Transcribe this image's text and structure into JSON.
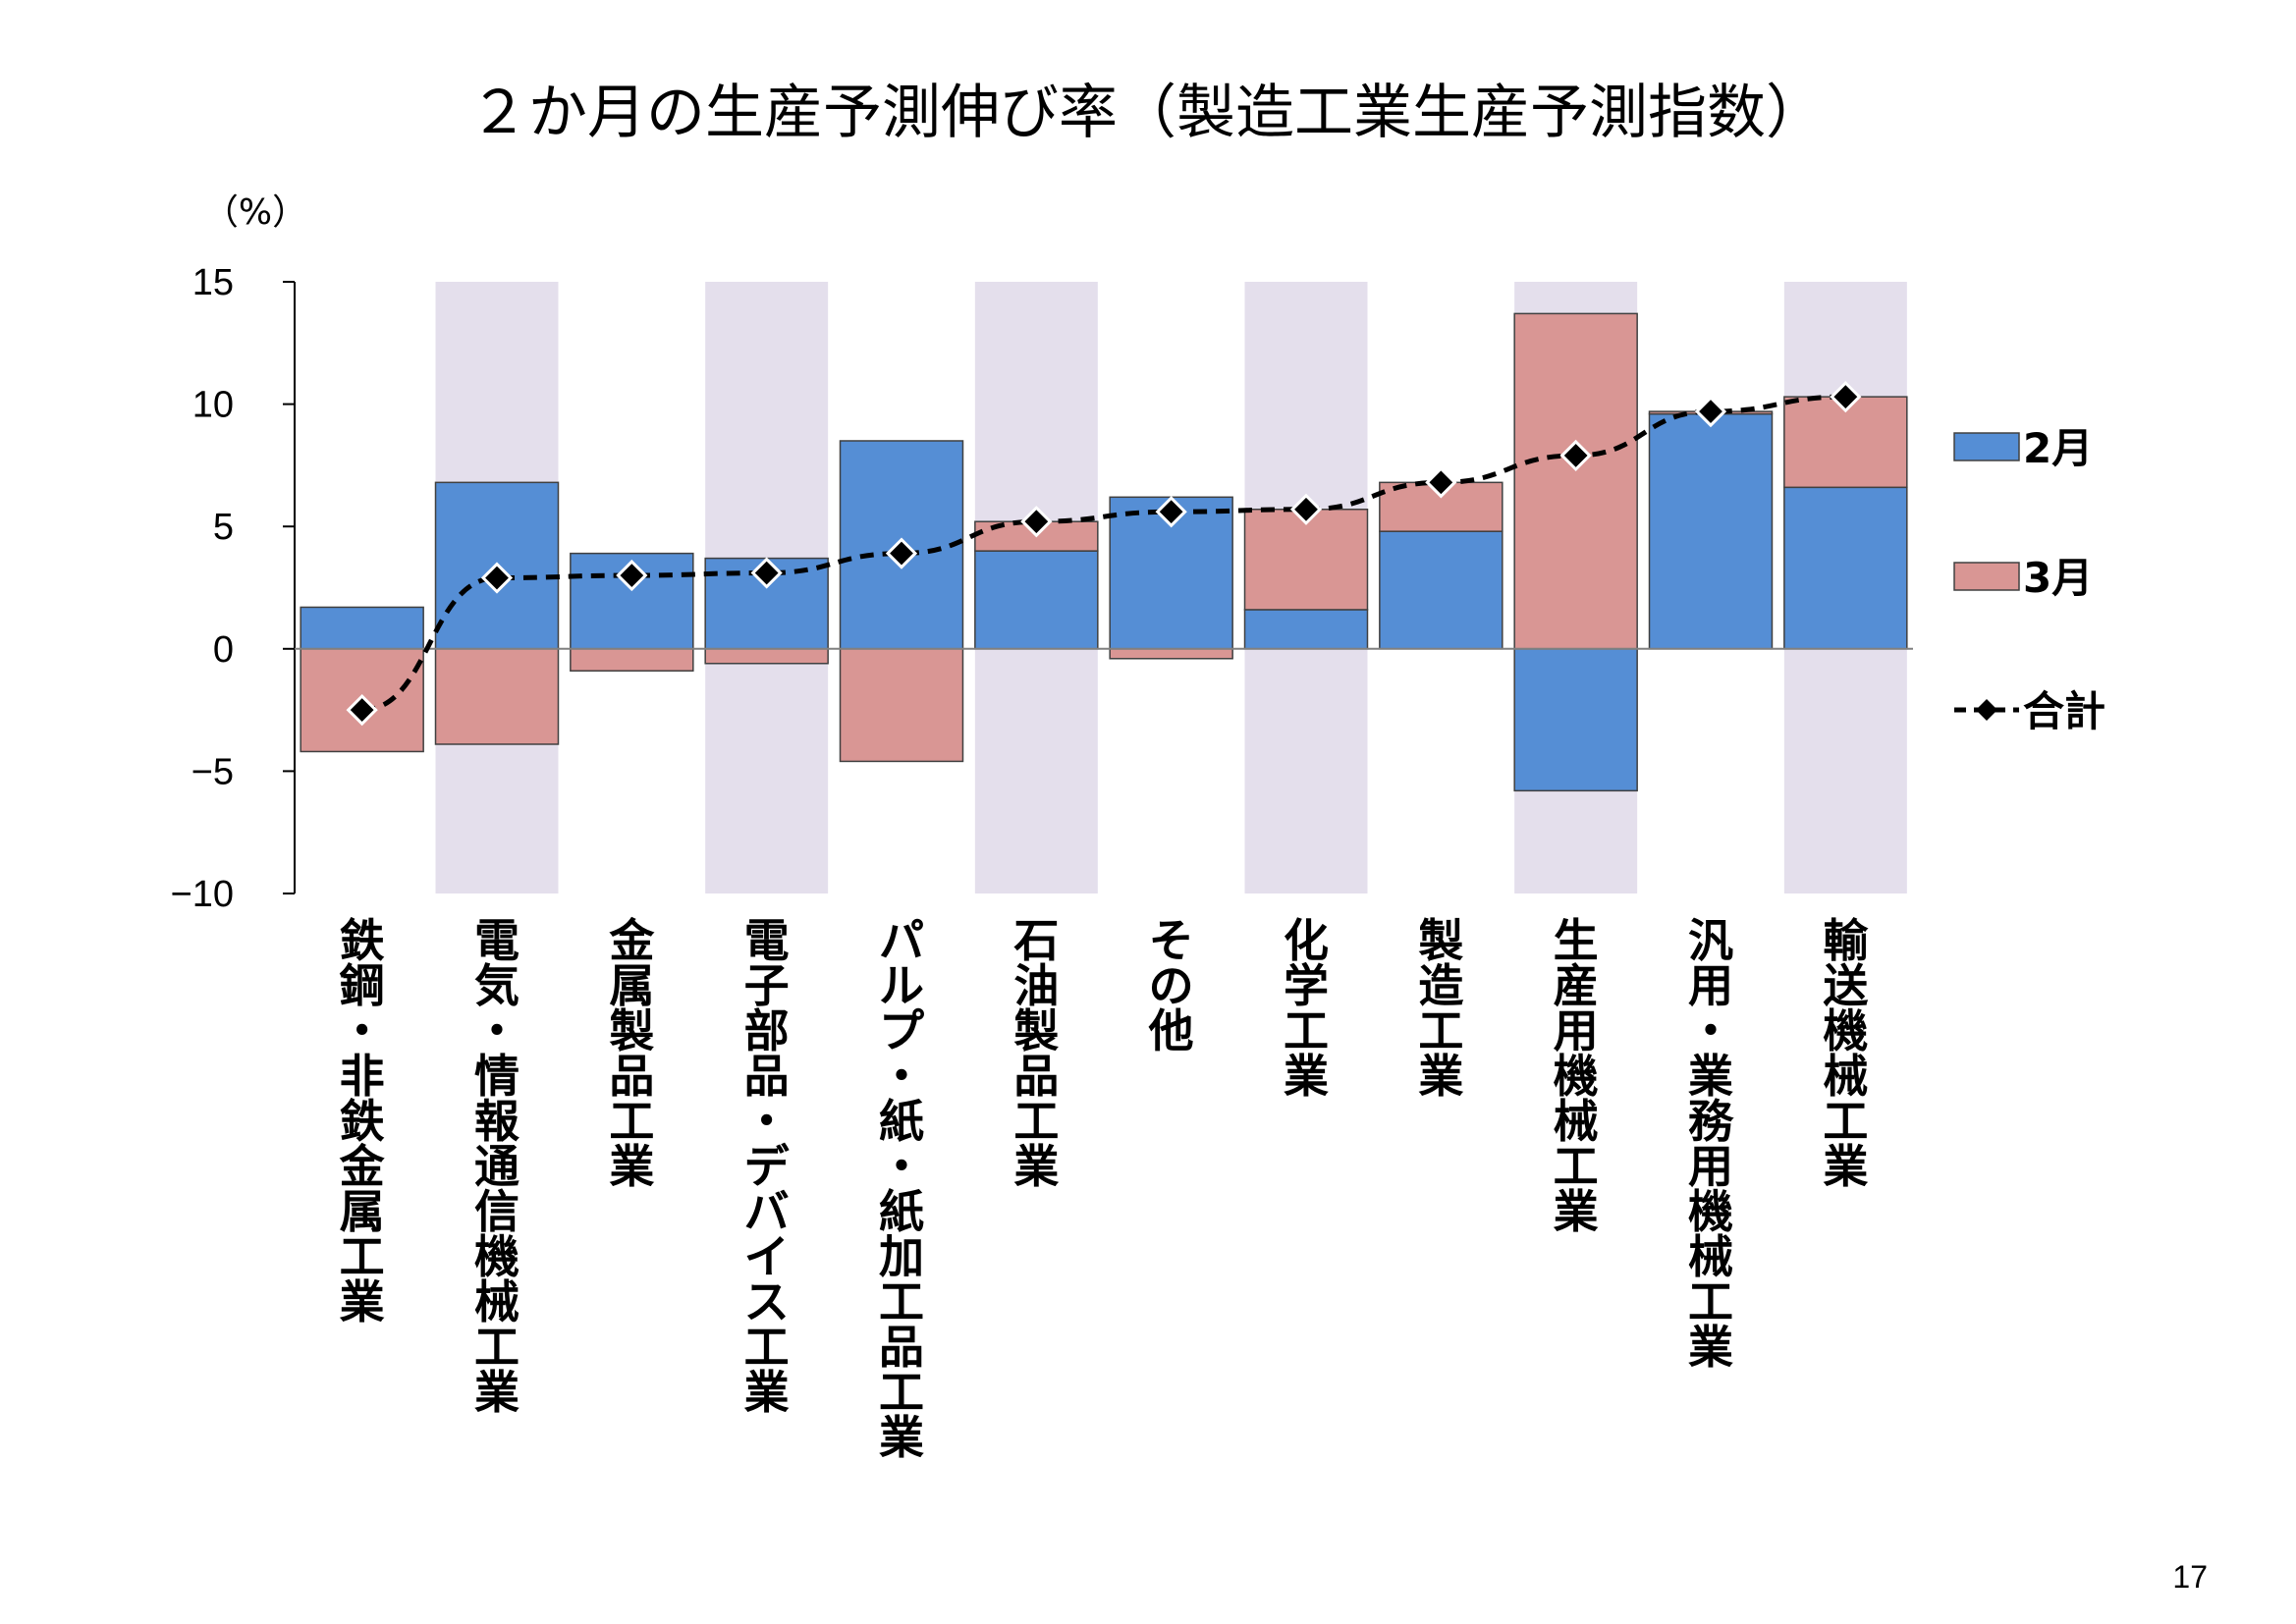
{
  "page_number": "17",
  "chart_data": {
    "type": "bar",
    "stacked": true,
    "title": "２か月の生産予測伸び率（製造工業生産予測指数）",
    "ylabel": "（%）",
    "ylim": [
      -10,
      15
    ],
    "yticks": [
      "15",
      "10",
      "5",
      "0",
      "−5",
      "−10"
    ],
    "ytick_values": [
      15,
      10,
      5,
      0,
      -5,
      -10
    ],
    "categories": [
      "鉄鋼・非鉄金属工業",
      "電気・情報通信機械工業",
      "金属製品工業",
      "電子部品・デバイス工業",
      "パルプ・紙・紙加工品工業",
      "石油製品工業",
      "その他",
      "化学工業",
      "製造工業",
      "生産用機械工業",
      "汎用・業務用機械工業",
      "輸送機械工業"
    ],
    "series": [
      {
        "name": "2月",
        "type": "bar",
        "color": "#558ed5",
        "values": [
          1.7,
          6.8,
          3.9,
          3.7,
          8.5,
          4.0,
          6.2,
          1.6,
          4.8,
          -5.8,
          9.6,
          6.6
        ]
      },
      {
        "name": "3月",
        "type": "bar",
        "color": "#d99694",
        "values": [
          -4.2,
          -3.9,
          -0.9,
          -0.6,
          -4.6,
          1.2,
          -0.4,
          4.1,
          2.0,
          13.7,
          0.1,
          3.7
        ]
      },
      {
        "name": "合計",
        "type": "line",
        "color": "#000000",
        "values": [
          -2.5,
          2.9,
          3.0,
          3.1,
          3.9,
          5.2,
          5.6,
          5.7,
          6.8,
          7.9,
          9.7,
          10.3
        ]
      }
    ],
    "legend": {
      "position": "right",
      "labels": [
        "2月",
        "3月",
        "合計"
      ]
    },
    "shaded_bands": [
      1,
      3,
      5,
      7,
      9,
      11
    ],
    "colors": {
      "band": "#e4dfec",
      "bar_border": "#404040",
      "axis": "#000000"
    }
  }
}
